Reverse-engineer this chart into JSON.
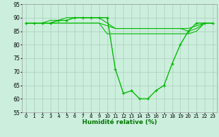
{
  "xlabel": "Humidité relative (%)",
  "background_color": "#cceedd",
  "grid_color": "#aaccbb",
  "line_color": "#00bb00",
  "ylim": [
    55,
    95
  ],
  "xlim": [
    -0.5,
    23.5
  ],
  "yticks": [
    55,
    60,
    65,
    70,
    75,
    80,
    85,
    90,
    95
  ],
  "xtick_labels": [
    "0",
    "1",
    "2",
    "3",
    "4",
    "5",
    "6",
    "7",
    "8",
    "9",
    "10",
    "11",
    "12",
    "13",
    "14",
    "15",
    "16",
    "17",
    "18",
    "19",
    "20",
    "21",
    "22",
    "23"
  ],
  "series": [
    [
      88,
      88,
      88,
      88,
      89,
      89,
      90,
      90,
      90,
      90,
      90,
      71,
      62,
      63,
      60,
      60,
      63,
      65,
      73,
      80,
      85,
      88,
      88,
      88
    ],
    [
      88,
      88,
      88,
      89,
      89,
      90,
      90,
      90,
      90,
      90,
      88,
      86,
      86,
      86,
      86,
      86,
      86,
      86,
      86,
      86,
      86,
      87,
      88,
      88
    ],
    [
      88,
      88,
      88,
      88,
      88,
      88,
      88,
      88,
      88,
      88,
      87,
      86,
      86,
      86,
      86,
      86,
      86,
      86,
      86,
      86,
      85,
      86,
      88,
      88
    ],
    [
      88,
      88,
      88,
      88,
      88,
      88,
      88,
      88,
      88,
      88,
      84,
      84,
      84,
      84,
      84,
      84,
      84,
      84,
      84,
      84,
      84,
      85,
      88,
      88
    ]
  ],
  "marker_series": 0,
  "xlabel_fontsize": 6.5,
  "xlabel_color": "#007700",
  "ytick_fontsize": 5.5,
  "xtick_fontsize": 5.0
}
